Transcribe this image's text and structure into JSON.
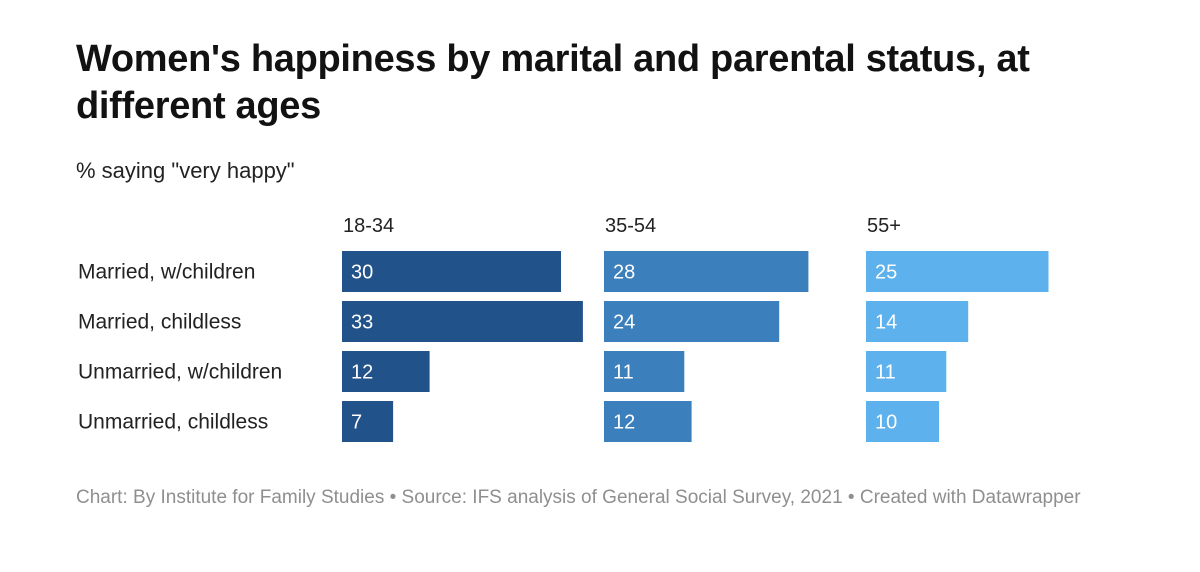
{
  "title": "Women's happiness by marital and parental status, at different ages",
  "subtitle": "% saying \"very happy\"",
  "footer": "Chart: By Institute for Family Studies • Source: IFS analysis of General Social Survey, 2021 • Created with Datawrapper",
  "colors": {
    "18-34": "#22528a",
    "35-54": "#3b7fbd",
    "55+": "#5db1ec",
    "label_text": "#ffffff"
  },
  "chart_data": {
    "type": "bar",
    "orientation": "horizontal",
    "categories": [
      "Married, w/children",
      "Married, childless",
      "Unmarried, w/children",
      "Unmarried, childless"
    ],
    "series": [
      {
        "name": "18-34",
        "values": [
          30,
          33,
          12,
          7
        ]
      },
      {
        "name": "35-54",
        "values": [
          28,
          24,
          11,
          12
        ]
      },
      {
        "name": "55+",
        "values": [
          25,
          14,
          11,
          10
        ]
      }
    ],
    "data_labels": true,
    "grid": false,
    "legend": "none"
  }
}
